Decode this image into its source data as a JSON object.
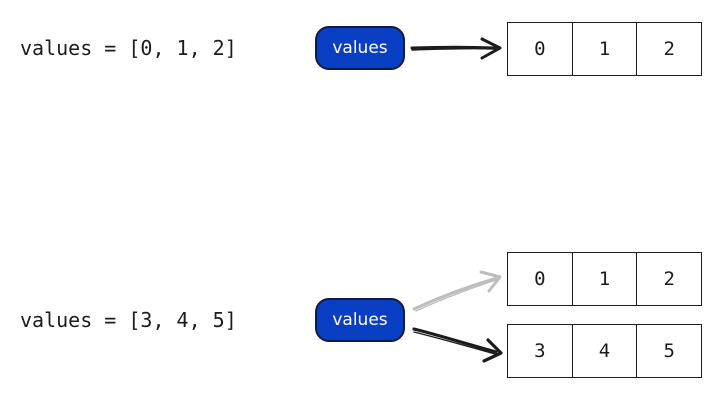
{
  "colors": {
    "pill_fill": "#0a3fc4",
    "arrow_active": "#1c1c1c",
    "arrow_stale": "#bdbdbd"
  },
  "top": {
    "code": "values = [0, 1, 2]",
    "variable_label": "values",
    "array": [
      "0",
      "1",
      "2"
    ]
  },
  "bottom": {
    "code": "values = [3, 4, 5]",
    "variable_label": "values",
    "old_array": [
      "0",
      "1",
      "2"
    ],
    "new_array": [
      "3",
      "4",
      "5"
    ]
  }
}
